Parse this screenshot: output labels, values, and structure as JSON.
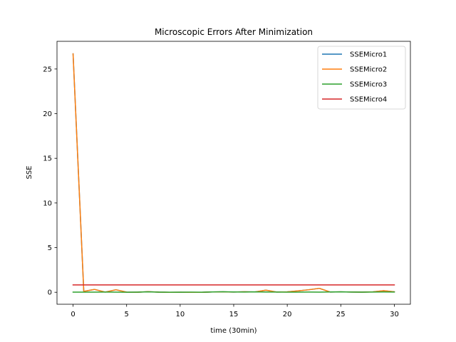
{
  "chart_data": {
    "type": "line",
    "title": "Microscopic Errors After Minimization",
    "xlabel": "time (30min)",
    "ylabel": "SSE",
    "xlim": [
      -1.5,
      31.5
    ],
    "ylim": [
      -1.34,
      28.1
    ],
    "xticks": [
      0,
      5,
      10,
      15,
      20,
      25,
      30
    ],
    "yticks": [
      0,
      5,
      10,
      15,
      20,
      25
    ],
    "grid": false,
    "legend_position": "top-right",
    "x": [
      0,
      1,
      2,
      3,
      4,
      5,
      6,
      7,
      8,
      9,
      10,
      11,
      12,
      13,
      14,
      15,
      16,
      17,
      18,
      19,
      20,
      21,
      22,
      23,
      24,
      25,
      26,
      27,
      28,
      29,
      30
    ],
    "series": [
      {
        "name": "SSEMicro1",
        "color": "#1f77b4",
        "values": [
          26.7,
          0.1,
          0.32,
          0.02,
          0.28,
          0.02,
          0.01,
          0.07,
          0.02,
          0.0,
          0.01,
          0.0,
          0.0,
          0.04,
          0.05,
          0.03,
          0.06,
          0.04,
          0.24,
          0.03,
          0.05,
          0.16,
          0.28,
          0.44,
          0.03,
          0.05,
          0.03,
          0.02,
          0.05,
          0.18,
          0.05
        ]
      },
      {
        "name": "SSEMicro2",
        "color": "#ff7f0e",
        "values": [
          26.7,
          0.1,
          0.32,
          0.02,
          0.28,
          0.02,
          0.01,
          0.07,
          0.02,
          0.0,
          0.01,
          0.0,
          0.0,
          0.04,
          0.05,
          0.03,
          0.06,
          0.04,
          0.24,
          0.03,
          0.05,
          0.16,
          0.28,
          0.44,
          0.03,
          0.05,
          0.03,
          0.02,
          0.05,
          0.18,
          0.05
        ]
      },
      {
        "name": "SSEMicro3",
        "color": "#2ca02c",
        "values": [
          0.02,
          0.02,
          0.02,
          0.03,
          0.02,
          0.01,
          0.02,
          0.05,
          0.02,
          0.01,
          0.01,
          0.02,
          0.01,
          0.04,
          0.06,
          0.04,
          0.03,
          0.05,
          0.03,
          0.03,
          0.02,
          0.02,
          0.03,
          0.02,
          0.04,
          0.05,
          0.03,
          0.02,
          0.03,
          0.04,
          0.03
        ]
      },
      {
        "name": "SSEMicro4",
        "color": "#d62728",
        "values": [
          0.82,
          0.82,
          0.82,
          0.82,
          0.82,
          0.82,
          0.82,
          0.82,
          0.82,
          0.82,
          0.82,
          0.82,
          0.82,
          0.82,
          0.82,
          0.82,
          0.82,
          0.82,
          0.82,
          0.82,
          0.82,
          0.82,
          0.82,
          0.82,
          0.82,
          0.82,
          0.82,
          0.82,
          0.82,
          0.82,
          0.82
        ]
      }
    ]
  }
}
